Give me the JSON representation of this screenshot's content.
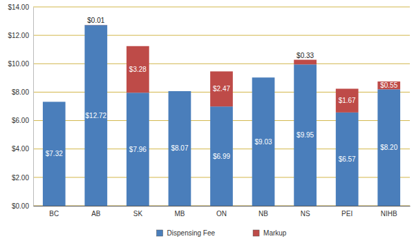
{
  "chart_data": {
    "type": "bar",
    "stacked": true,
    "grid": true,
    "legend": "bottom",
    "data_labels": true,
    "categories": [
      "BC",
      "AB",
      "SK",
      "MB",
      "ON",
      "NB",
      "NS",
      "PEI",
      "NIHB"
    ],
    "ylim": [
      0,
      14
    ],
    "yticks": [
      {
        "value": 0,
        "label": "$0.00"
      },
      {
        "value": 2,
        "label": "$2.00"
      },
      {
        "value": 4,
        "label": "$4.00"
      },
      {
        "value": 6,
        "label": "$6.00"
      },
      {
        "value": 8,
        "label": "$8.00"
      },
      {
        "value": 10,
        "label": "$10.00"
      },
      {
        "value": 12,
        "label": "$12.00"
      },
      {
        "value": 14,
        "label": "$14.00"
      }
    ],
    "series": [
      {
        "name": "Dispensing Fee",
        "color": "#4a7ebb",
        "values": [
          7.32,
          12.72,
          7.96,
          8.07,
          6.99,
          9.03,
          9.95,
          6.57,
          8.2
        ],
        "value_labels": [
          "$7.32",
          "$12.72",
          "$7.96",
          "$8.07",
          "$6.99",
          "$9.03",
          "$9.95",
          "$6.57",
          "$8.20"
        ]
      },
      {
        "name": "Markup",
        "color": "#be4b48",
        "values": [
          null,
          0.01,
          3.28,
          null,
          2.47,
          null,
          0.33,
          1.67,
          0.55
        ],
        "value_labels": [
          null,
          "$0.01",
          "$3.28",
          null,
          "$2.47",
          null,
          "$0.33",
          "$1.67",
          "$0.55"
        ]
      }
    ]
  }
}
